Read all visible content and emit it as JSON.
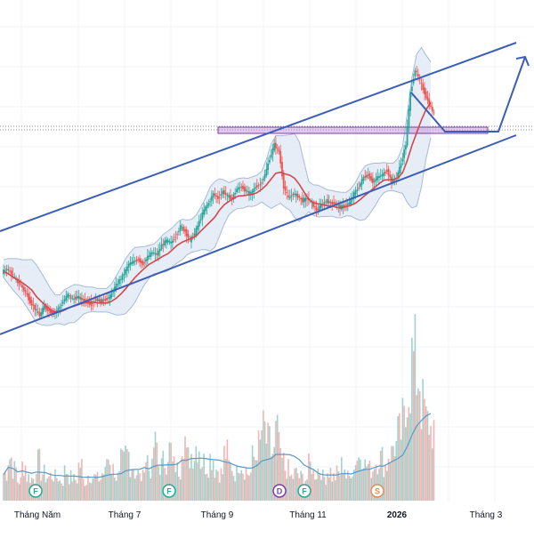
{
  "chart_data": {
    "type": "candlestick",
    "x_axis": {
      "tick_labels": [
        "Tháng Năm",
        "Tháng 7",
        "Tháng 9",
        "Tháng 11",
        "2026",
        "Tháng 3"
      ],
      "bold_labels": [
        "2026"
      ]
    },
    "grid": true,
    "overlays": [
      "ascending channel",
      "bollinger bands",
      "moving average",
      "horizontal resistance zone",
      "projected path arrow"
    ],
    "price_series_relative": [
      0.6,
      0.58,
      0.55,
      0.53,
      0.5,
      0.46,
      0.43,
      0.4,
      0.44,
      0.42,
      0.41,
      0.43,
      0.46,
      0.49,
      0.47,
      0.48,
      0.47,
      0.46,
      0.45,
      0.47,
      0.46,
      0.47,
      0.48,
      0.52,
      0.55,
      0.58,
      0.62,
      0.63,
      0.64,
      0.62,
      0.65,
      0.67,
      0.66,
      0.7,
      0.72,
      0.71,
      0.74,
      0.78,
      0.76,
      0.72,
      0.75,
      0.8,
      0.85,
      0.88,
      0.92,
      0.9,
      0.93,
      0.91,
      0.9,
      0.94,
      0.95,
      0.93,
      0.92,
      0.95,
      0.96,
      1.0,
      1.07,
      1.13,
      1.1,
      0.95,
      0.9,
      0.92,
      0.91,
      0.89,
      0.9,
      0.88,
      0.85,
      0.87,
      0.89,
      0.88,
      0.88,
      0.86,
      0.87,
      0.88,
      0.92,
      0.95,
      0.99,
      1.0,
      0.97,
      0.99,
      1.0,
      1.02,
      0.97,
      0.99,
      1.05,
      1.13,
      1.35,
      1.45,
      1.4,
      1.35,
      1.3,
      1.26
    ],
    "volume_relative": [
      0.35,
      0.55,
      0.4,
      0.25,
      0.45,
      0.3,
      0.28,
      0.5,
      0.35,
      0.3,
      0.32,
      0.3,
      0.25,
      0.38,
      0.3,
      0.27,
      0.45,
      0.25,
      0.33,
      0.3,
      0.28,
      0.35,
      0.55,
      0.4,
      0.3,
      0.5,
      0.6,
      0.45,
      0.35,
      0.3,
      0.55,
      0.4,
      0.7,
      0.45,
      0.5,
      0.65,
      0.45,
      0.4,
      0.8,
      0.55,
      0.6,
      0.7,
      0.5,
      0.45,
      0.55,
      0.4,
      0.35,
      0.6,
      0.45,
      0.35,
      0.5,
      0.4,
      0.35,
      0.55,
      0.7,
      0.9,
      0.75,
      0.6,
      0.85,
      0.5,
      0.4,
      0.3,
      0.35,
      0.3,
      0.28,
      0.45,
      0.35,
      0.4,
      0.3,
      0.38,
      0.3,
      0.35,
      0.45,
      0.3,
      0.4,
      0.55,
      0.6,
      0.45,
      0.4,
      0.5,
      0.55,
      0.45,
      0.6,
      0.7,
      0.85,
      1.0,
      1.5,
      1.8,
      1.6,
      1.2,
      1.0,
      0.9
    ],
    "event_markers": [
      {
        "label": "F",
        "color": "#22ab94"
      },
      {
        "label": "F",
        "color": "#22ab94"
      },
      {
        "label": "D",
        "color": "#7b3fa6"
      },
      {
        "label": "F",
        "color": "#22ab94"
      },
      {
        "label": "S",
        "color": "#e08d5c"
      }
    ],
    "colors": {
      "up": "#26a69a",
      "down": "#ef5350",
      "volume_up": "#9fd3cd",
      "volume_down": "#f5b3b1",
      "channel": "#3d5eb5",
      "bollinger_fill": "#dbe6f3",
      "bollinger_line": "#a8bbd6",
      "ma": "#d3484c",
      "volume_line": "#5b98c6",
      "resistance_zone": "#c79be0"
    }
  }
}
